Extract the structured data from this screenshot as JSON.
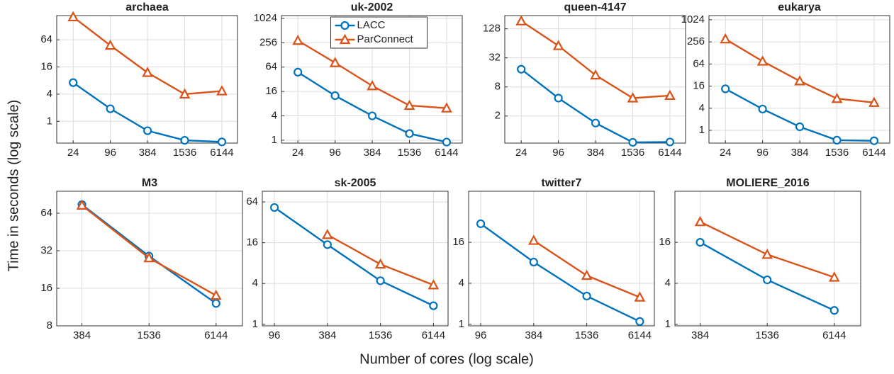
{
  "xlabel": "Number of cores (log scale)",
  "ylabel": "Time in seconds (log scale)",
  "chart_data": [
    {
      "type": "line",
      "title": "archaea",
      "x": [
        24,
        96,
        384,
        1536,
        6144
      ],
      "xlim": [
        13,
        11000
      ],
      "xticks": [
        24,
        96,
        384,
        1536,
        6144
      ],
      "ylim": [
        0.33,
        220
      ],
      "yticks": [
        1,
        4,
        16,
        64
      ],
      "xscale": "log",
      "yscale": "log",
      "grid": true,
      "series": [
        {
          "name": "LACC",
          "color": "#0072bd",
          "marker": "circle",
          "values": [
            7.2,
            1.9,
            0.62,
            0.38,
            0.35
          ]
        },
        {
          "name": "ParConnect",
          "color": "#d95319",
          "marker": "triangle",
          "values": [
            205,
            48,
            12,
            4,
            4.7
          ]
        }
      ]
    },
    {
      "type": "line",
      "title": "uk-2002",
      "x": [
        24,
        96,
        384,
        1536,
        6144
      ],
      "xlim": [
        13,
        11000
      ],
      "xticks": [
        24,
        96,
        384,
        1536,
        6144
      ],
      "ylim": [
        0.85,
        1200
      ],
      "yticks": [
        1,
        4,
        16,
        64,
        256,
        1024
      ],
      "xscale": "log",
      "yscale": "log",
      "grid": true,
      "legend": "top",
      "series": [
        {
          "name": "LACC",
          "color": "#0072bd",
          "marker": "circle",
          "values": [
            48,
            12.6,
            4,
            1.46,
            0.9
          ]
        },
        {
          "name": "ParConnect",
          "color": "#d95319",
          "marker": "triangle",
          "values": [
            290,
            82,
            22,
            7.2,
            6.2
          ]
        }
      ]
    },
    {
      "type": "line",
      "title": "queen-4147",
      "x": [
        24,
        96,
        384,
        1536,
        6144
      ],
      "xlim": [
        13,
        11000
      ],
      "xticks": [
        24,
        96,
        384,
        1536,
        6144
      ],
      "ylim": [
        0.55,
        240
      ],
      "yticks": [
        2,
        8,
        32,
        128
      ],
      "xscale": "log",
      "yscale": "log",
      "grid": true,
      "series": [
        {
          "name": "LACC",
          "color": "#0072bd",
          "marker": "circle",
          "values": [
            18.6,
            4.7,
            1.43,
            0.57,
            0.58
          ]
        },
        {
          "name": "ParConnect",
          "color": "#d95319",
          "marker": "triangle",
          "values": [
            185,
            57,
            14,
            4.7,
            5.3
          ]
        }
      ]
    },
    {
      "type": "line",
      "title": "eukarya",
      "x": [
        24,
        96,
        384,
        1536,
        6144
      ],
      "xlim": [
        13,
        11000
      ],
      "xticks": [
        24,
        96,
        384,
        1536,
        6144
      ],
      "ylim": [
        0.45,
        1330
      ],
      "yticks": [
        1,
        4,
        16,
        64,
        256,
        1024
      ],
      "xscale": "log",
      "yscale": "log",
      "grid": true,
      "series": [
        {
          "name": "LACC",
          "color": "#0072bd",
          "marker": "circle",
          "values": [
            13.5,
            3.8,
            1.25,
            0.54,
            0.52
          ]
        },
        {
          "name": "ParConnect",
          "color": "#d95319",
          "marker": "triangle",
          "values": [
            305,
            76,
            22,
            7.3,
            5.7
          ]
        }
      ]
    },
    {
      "type": "line",
      "title": "M3",
      "x": [
        384,
        1536,
        6144
      ],
      "xlim": [
        228,
        10600
      ],
      "xticks": [
        384,
        1536,
        6144
      ],
      "ylim": [
        8,
        96
      ],
      "yticks": [
        8,
        16,
        32,
        64
      ],
      "xscale": "log",
      "yscale": "log",
      "grid": true,
      "series": [
        {
          "name": "LACC",
          "color": "#0072bd",
          "marker": "circle",
          "values": [
            75,
            29,
            12.1
          ]
        },
        {
          "name": "ParConnect",
          "color": "#d95319",
          "marker": "triangle",
          "values": [
            74,
            28,
            14
          ]
        }
      ]
    },
    {
      "type": "line",
      "title": "sk-2005",
      "x": [
        96,
        384,
        1536,
        6144
      ],
      "xlim": [
        70,
        9000
      ],
      "xticks": [
        96,
        384,
        1536,
        6144
      ],
      "ylim": [
        0.95,
        92
      ],
      "yticks": [
        1,
        4,
        16,
        64
      ],
      "xscale": "log",
      "yscale": "log",
      "grid": true,
      "series": [
        {
          "name": "LACC",
          "color": "#0072bd",
          "marker": "circle",
          "values": [
            53,
            15,
            4.4,
            1.88
          ]
        },
        {
          "name": "ParConnect",
          "color": "#d95319",
          "marker": "triangle",
          "values": [
            null,
            21,
            7.7,
            3.8
          ]
        }
      ]
    },
    {
      "type": "line",
      "title": "twitter7",
      "x": [
        96,
        384,
        1536,
        6144
      ],
      "xlim": [
        70,
        9000
      ],
      "xticks": [
        96,
        384,
        1536,
        6144
      ],
      "ylim": [
        0.95,
        90
      ],
      "yticks": [
        1,
        4,
        16
      ],
      "xscale": "log",
      "yscale": "log",
      "grid": true,
      "series": [
        {
          "name": "LACC",
          "color": "#0072bd",
          "marker": "circle",
          "values": [
            30,
            8.2,
            2.6,
            1.1
          ]
        },
        {
          "name": "ParConnect",
          "color": "#d95319",
          "marker": "triangle",
          "values": [
            null,
            17,
            5.2,
            2.5
          ]
        }
      ]
    },
    {
      "type": "line",
      "title": "MOLIERE_2016",
      "x": [
        384,
        1536,
        6144
      ],
      "xlim": [
        228,
        10600
      ],
      "xticks": [
        384,
        1536,
        6144
      ],
      "ylim": [
        0.95,
        90
      ],
      "yticks": [
        1,
        4,
        16
      ],
      "xscale": "log",
      "yscale": "log",
      "grid": true,
      "series": [
        {
          "name": "LACC",
          "color": "#0072bd",
          "marker": "circle",
          "values": [
            16,
            4.5,
            1.6
          ]
        },
        {
          "name": "ParConnect",
          "color": "#d95319",
          "marker": "triangle",
          "values": [
            32,
            10.6,
            4.9
          ]
        }
      ]
    }
  ]
}
